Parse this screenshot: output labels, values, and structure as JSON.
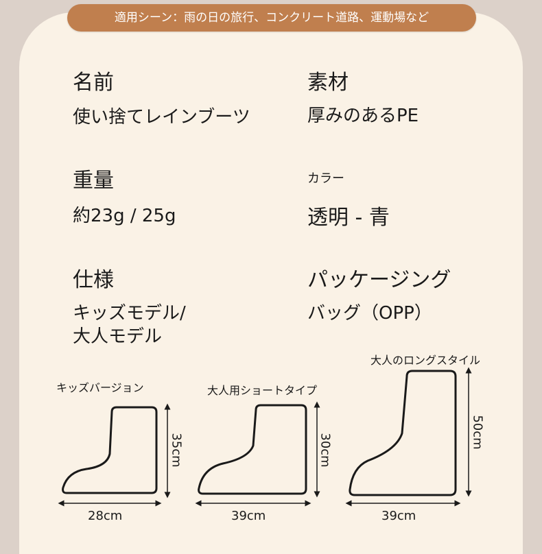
{
  "banner": "適用シーン：雨の日の旅行、コンクリート道路、運動場など",
  "specs": {
    "name_label": "名前",
    "name_value": "使い捨てレインブーツ",
    "material_label": "素材",
    "material_value": "厚みのあるPE",
    "weight_label": "重量",
    "weight_value": "約23g / 25g",
    "color_label": "カラー",
    "color_value": "透明 - 青",
    "spec_label": "仕様",
    "spec_value_line1": "キッズモデル/",
    "spec_value_line2": "大人モデル",
    "package_label": "パッケージング",
    "package_value": "バッグ（OPP）"
  },
  "diagrams": {
    "kids": {
      "title": "キッズバージョン",
      "height": "35cm",
      "width": "28cm"
    },
    "adult_short": {
      "title": "大人用ショートタイプ",
      "height": "30cm",
      "width": "39cm"
    },
    "adult_long": {
      "title": "大人のロングスタイル",
      "height": "50cm",
      "width": "39cm"
    }
  },
  "colors": {
    "background": "#dcd1c9",
    "card": "#faf2e6",
    "banner": "#c07f4e",
    "text": "#1a1a1a"
  }
}
